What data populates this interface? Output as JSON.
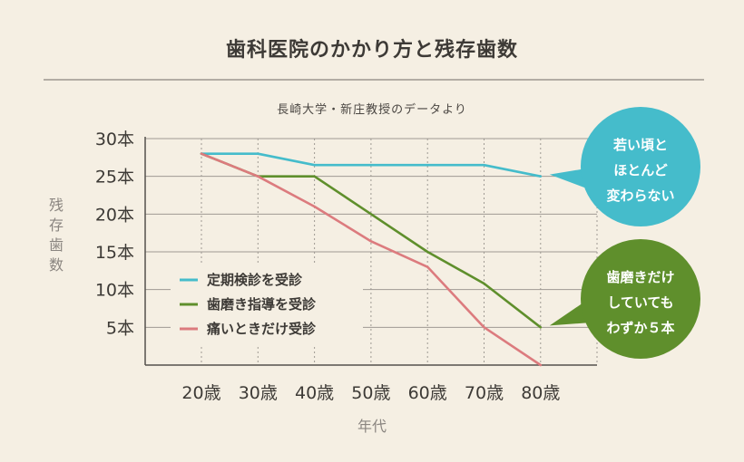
{
  "header": {
    "title": "歯科医院のかかり方と残存歯数",
    "subtitle": "長崎大学・新庄教授のデータより"
  },
  "chart_data": {
    "type": "line",
    "x": [
      "20歳",
      "30歳",
      "40歳",
      "50歳",
      "60歳",
      "70歳",
      "80歳"
    ],
    "xlabel": "年代",
    "ylabel": "残存歯数",
    "yticks": [
      {
        "value": 30,
        "label": "30本"
      },
      {
        "value": 25,
        "label": "25本"
      },
      {
        "value": 20,
        "label": "20本"
      },
      {
        "value": 15,
        "label": "15本"
      },
      {
        "value": 10,
        "label": "10本"
      },
      {
        "value": 5,
        "label": "5本"
      }
    ],
    "ylim": [
      0,
      30
    ],
    "grid": true,
    "legend_position": "bottom-left",
    "series": [
      {
        "name": "定期検診を受診",
        "color": "#45bccb",
        "values": [
          28,
          28,
          26.5,
          26.5,
          26.5,
          26.5,
          25
        ]
      },
      {
        "name": "歯磨き指導を受診",
        "color": "#5f8f2c",
        "values": [
          28,
          25,
          25,
          20,
          15,
          10.8,
          5
        ]
      },
      {
        "name": "痛いときだけ受診",
        "color": "#dc7b7e",
        "values": [
          28,
          25,
          21,
          16.4,
          13,
          5,
          0
        ]
      }
    ],
    "annotations": [
      {
        "lines": [
          "若い頃と",
          "ほとんど",
          "変わらない"
        ],
        "color": "#45bccb",
        "series": 0
      },
      {
        "lines": [
          "歯磨きだけ",
          "していても",
          "わずか５本"
        ],
        "color": "#5f8f2c",
        "series": 1
      }
    ]
  }
}
